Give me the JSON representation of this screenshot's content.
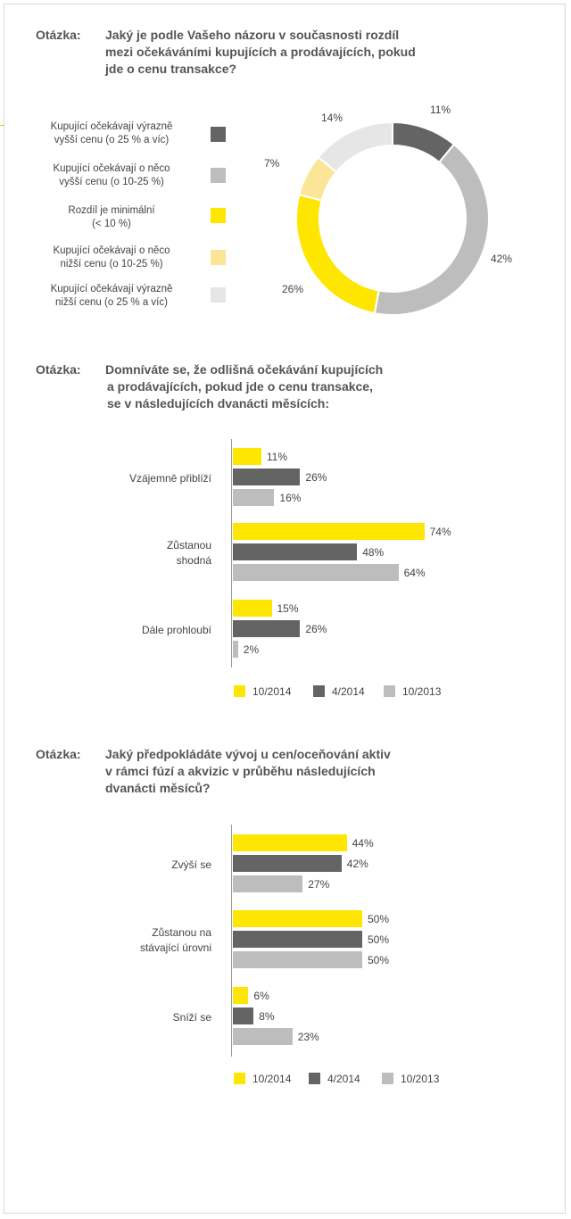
{
  "colors": {
    "yellow": "#ffe600",
    "dark": "#646464",
    "gray": "#bdbdbd",
    "light_yellow": "#fbe596",
    "light_gray": "#e6e6e6"
  },
  "question1": {
    "prefix": "Otázka:",
    "lines": [
      "Jaký je podle Vašeho názoru v současnosti rozdíl",
      "mezi očekáváními kupujících a prodávajících, pokud",
      "jde o cenu transakce?"
    ]
  },
  "question2": {
    "prefix": "Otázka:",
    "lines": [
      "Domníváte se, že odlišná očekávání kupujících",
      "a prodávajících, pokud jde o cenu transakce,",
      "se v následujících dvanácti měsících:"
    ]
  },
  "question3": {
    "prefix": "Otázka:",
    "lines": [
      "Jaký předpokládáte vývoj u cen/oceňování aktiv",
      "v rámci fúzí a akvizic v průběhu následujících",
      "dvanácti měsíců?"
    ]
  },
  "chart_data": [
    {
      "type": "pie",
      "title": "",
      "slices": [
        {
          "label_lines": [
            "Kupující očekávají výrazně",
            "vyšší cenu (o 25 % a víc)"
          ],
          "value": 11,
          "value_label": "11%",
          "color": "#646464"
        },
        {
          "label_lines": [
            "Kupující očekávají o něco",
            "vyšší cenu (o 10-25 %)"
          ],
          "value": 42,
          "value_label": "42%",
          "color": "#bdbdbd"
        },
        {
          "label_lines": [
            "Rozdíl je minimální",
            "(< 10 %)"
          ],
          "value": 26,
          "value_label": "26%",
          "color": "#ffe600"
        },
        {
          "label_lines": [
            "Kupující očekávají o něco",
            "nižší cenu (o 10-25 %)"
          ],
          "value": 7,
          "value_label": "7%",
          "color": "#fbe596"
        },
        {
          "label_lines": [
            "Kupující očekávají výrazně",
            "nižší cenu (o 25 % a víc)"
          ],
          "value": 14,
          "value_label": "14%",
          "color": "#e6e6e6"
        }
      ]
    },
    {
      "type": "bar",
      "orientation": "horizontal",
      "categories": [
        [
          "Vzájemně přiblíží"
        ],
        [
          "Zůstanou",
          "shodná"
        ],
        [
          "Dále prohloubí"
        ]
      ],
      "series": [
        {
          "name": "10/2014",
          "values": [
            11,
            74,
            15
          ],
          "color": "#ffe600"
        },
        {
          "name": "4/2014",
          "values": [
            26,
            48,
            26
          ],
          "color": "#646464"
        },
        {
          "name": "10/2013",
          "values": [
            16,
            64,
            2
          ],
          "color": "#bdbdbd"
        }
      ],
      "value_suffix": "%",
      "legend": "bottom"
    },
    {
      "type": "bar",
      "orientation": "horizontal",
      "categories": [
        [
          "Zvýší se"
        ],
        [
          "Zůstanou na",
          "stávající úrovni"
        ],
        [
          "Sníží se"
        ]
      ],
      "series": [
        {
          "name": "10/2014",
          "values": [
            44,
            50,
            6
          ],
          "color": "#ffe600"
        },
        {
          "name": "4/2014",
          "values": [
            42,
            50,
            8
          ],
          "color": "#646464"
        },
        {
          "name": "10/2013",
          "values": [
            27,
            50,
            23
          ],
          "color": "#bdbdbd"
        }
      ],
      "value_suffix": "%",
      "legend": "bottom"
    }
  ]
}
